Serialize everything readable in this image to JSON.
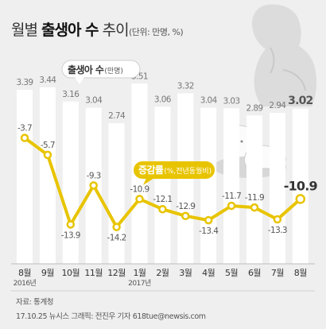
{
  "header": {
    "title_prefix": "월별 ",
    "title_bold": "출생아 수",
    "title_suffix": " 추이",
    "unit": "(단위: 만명, %)"
  },
  "legend": {
    "bar_label": "출생아 수",
    "bar_unit": "(만명)",
    "line_label": "증감률",
    "line_unit": "(%,전년동월비)"
  },
  "colors": {
    "bar": "#ffffff",
    "line": "#e8c400",
    "marker_fill": "#ffffff",
    "background": "#efefef",
    "grid": "#c8c8c8"
  },
  "chart_data": {
    "type": "bar",
    "categories": [
      "8월",
      "9월",
      "10월",
      "11월",
      "12월",
      "1월",
      "2월",
      "3월",
      "4월",
      "5월",
      "6월",
      "7월",
      "8월"
    ],
    "year_labels": [
      "2016년",
      "",
      "",
      "",
      "",
      "2017년",
      "",
      "",
      "",
      "",
      "",
      "",
      ""
    ],
    "series": [
      {
        "name": "출생아 수",
        "type": "bar",
        "values": [
          3.39,
          3.44,
          3.16,
          3.04,
          2.74,
          3.51,
          3.06,
          3.32,
          3.04,
          3.03,
          2.89,
          2.94,
          3.02
        ],
        "labels": [
          "3.39",
          "3.44",
          "3.16",
          "3.04",
          "2.74",
          "3.51",
          "3.06",
          "3.32",
          "3.04",
          "3.03",
          "2.89",
          "2.94",
          "3.02"
        ]
      },
      {
        "name": "증감률",
        "type": "line",
        "values": [
          -3.7,
          -5.7,
          -13.9,
          -9.3,
          -14.2,
          -10.9,
          -12.1,
          -12.9,
          -13.4,
          -11.7,
          -11.9,
          -13.3,
          -10.9
        ],
        "labels": [
          "-3.7",
          "-5.7",
          "-13.9",
          "-9.3",
          "-14.2",
          "-10.9",
          "-12.1",
          "-12.9",
          "-13.4",
          "-11.7",
          "-11.9",
          "-13.3",
          "-10.9"
        ]
      }
    ]
  },
  "footer": {
    "source": "자료: 통계청",
    "credit": "17.10.25 뉴시스 그래픽: 전진우 기자 618tue@newsis.com"
  }
}
